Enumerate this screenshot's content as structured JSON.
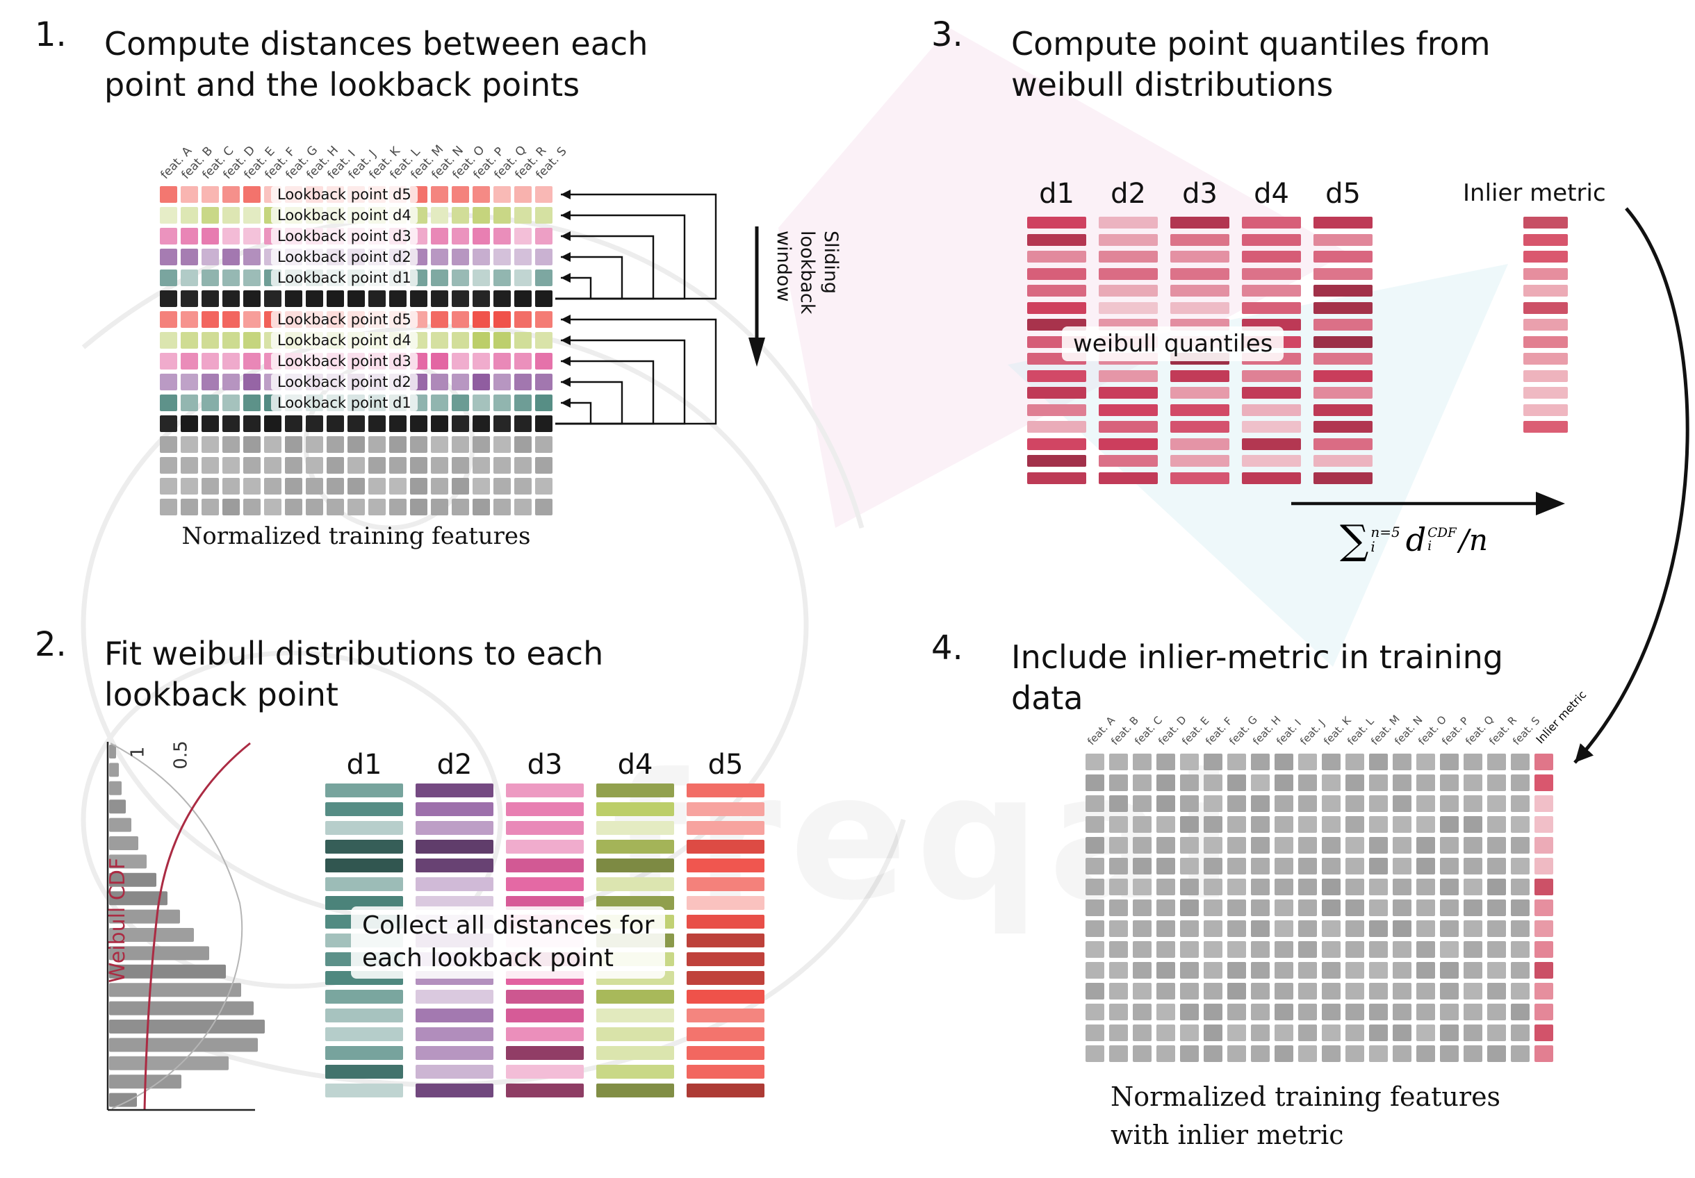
{
  "watermark": {
    "text": "freqai"
  },
  "colors": {
    "d1": "#4d877e",
    "d2": "#8e5a9e",
    "d3": "#e2609f",
    "d4": "#b9cc63",
    "d5": "#f0524a",
    "current_black": "#1b1b1b",
    "neutral_gray": "#a6a6a6",
    "quantile_red": "#cf3f5e",
    "inlier_red": "#d9566d",
    "cdf_curve_red": "#ab2b43",
    "arrow_black": "#111111"
  },
  "panel1": {
    "number": "1.",
    "title": [
      "Compute distances between each",
      "point and the lookback points"
    ],
    "features": [
      "feat. A",
      "feat. B",
      "feat. C",
      "feat. D",
      "feat. E",
      "feat. F",
      "feat. G",
      "feat. H",
      "feat. I",
      "feat. J",
      "feat. K",
      "feat. L",
      "feat. M",
      "feat. N",
      "feat. O",
      "feat. P",
      "feat. Q",
      "feat. R",
      "feat. S"
    ],
    "lookback_labels": [
      "Lookback point d5",
      "Lookback point d4",
      "Lookback point d3",
      "Lookback point d2",
      "Lookback point d1"
    ],
    "caption": "Normalized training features",
    "sliding_label": [
      "Sliding",
      "lookback",
      "window"
    ]
  },
  "panel2": {
    "number": "2.",
    "title": [
      "Fit weibull distributions to each",
      "lookback point"
    ],
    "plot": {
      "ylabel": "Weibull CDF",
      "ticks": [
        "1",
        "0.5"
      ]
    },
    "column_labels": [
      "d1",
      "d2",
      "d3",
      "d4",
      "d5"
    ],
    "overlay": [
      "Collect all distances for",
      "each lookback point"
    ]
  },
  "panel3": {
    "number": "3.",
    "title": [
      "Compute point quantiles from",
      "weibull distributions"
    ],
    "column_labels": [
      "d1",
      "d2",
      "d3",
      "d4",
      "d5"
    ],
    "overlay": "weibull quantiles",
    "inlier_label": "Inlier metric",
    "formula": {
      "sum": "∑",
      "sum_sup": "n=5",
      "sum_sub": "i",
      "var": "d",
      "var_sup": "CDF",
      "var_sub": "i",
      "tail": "/n"
    }
  },
  "panel4": {
    "number": "4.",
    "title": [
      "Include inlier-metric in training",
      "data"
    ],
    "features": [
      "feat. A",
      "feat. B",
      "feat. C",
      "feat. D",
      "feat. E",
      "feat. F",
      "feat. G",
      "feat. H",
      "feat. I",
      "feat. J",
      "feat. K",
      "feat. L",
      "feat. M",
      "feat. N",
      "feat. O",
      "feat. P",
      "feat. Q",
      "feat. R",
      "feat. S"
    ],
    "inlier_header": "Inlier metric",
    "caption": [
      "Normalized training features",
      "with inlier metric"
    ]
  }
}
